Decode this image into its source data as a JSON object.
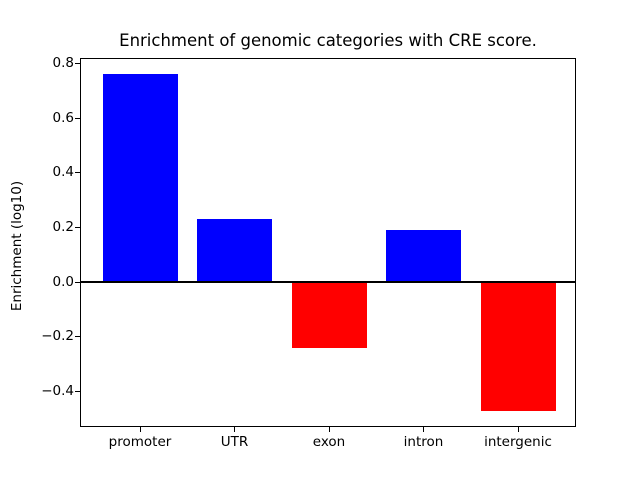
{
  "chart_data": {
    "type": "bar",
    "title": "Enrichment of genomic categories with CRE score.",
    "xlabel": "",
    "ylabel": "Enrichment (log10)",
    "categories": [
      "promoter",
      "UTR",
      "exon",
      "intron",
      "intergenic"
    ],
    "values": [
      0.76,
      0.23,
      -0.24,
      0.19,
      -0.47
    ],
    "bar_colors": [
      "#0000ff",
      "#0000ff",
      "#ff0000",
      "#0000ff",
      "#ff0000"
    ],
    "positive_color": "#0000ff",
    "negative_color": "#ff0000",
    "ylim": [
      -0.53,
      0.82
    ],
    "yticks": [
      {
        "value": 0.8,
        "label": "0.8"
      },
      {
        "value": 0.6,
        "label": "0.6"
      },
      {
        "value": 0.4,
        "label": "0.4"
      },
      {
        "value": 0.2,
        "label": "0.2"
      },
      {
        "value": 0.0,
        "label": "0.0"
      },
      {
        "value": -0.2,
        "label": "−0.2"
      },
      {
        "value": -0.4,
        "label": "−0.4"
      }
    ],
    "grid": false,
    "legend": null,
    "zero_line": true,
    "background_color": "#ffffff",
    "spine_color": "#000000"
  }
}
